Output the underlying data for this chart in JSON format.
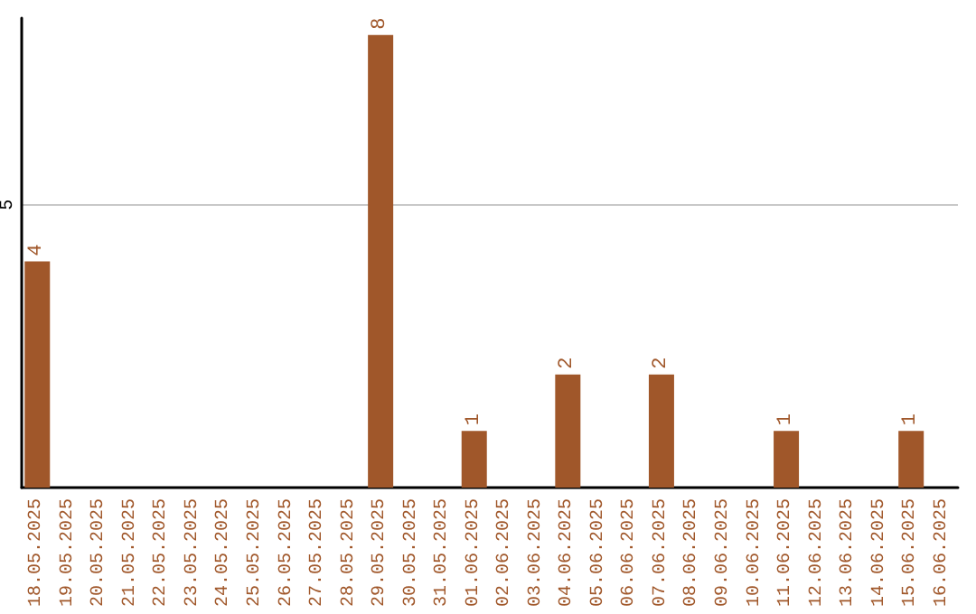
{
  "chart_data": {
    "type": "bar",
    "categories": [
      "18.05.2025",
      "19.05.2025",
      "20.05.2025",
      "21.05.2025",
      "22.05.2025",
      "23.05.2025",
      "24.05.2025",
      "25.05.2025",
      "26.05.2025",
      "27.05.2025",
      "28.05.2025",
      "29.05.2025",
      "30.05.2025",
      "31.05.2025",
      "01.06.2025",
      "02.06.2025",
      "03.06.2025",
      "04.06.2025",
      "05.06.2025",
      "06.06.2025",
      "07.06.2025",
      "08.06.2025",
      "09.06.2025",
      "10.06.2025",
      "11.06.2025",
      "12.06.2025",
      "13.06.2025",
      "14.06.2025",
      "15.06.2025",
      "16.06.2025"
    ],
    "values": [
      4,
      0,
      0,
      0,
      0,
      0,
      0,
      0,
      0,
      0,
      0,
      8,
      0,
      0,
      1,
      0,
      0,
      2,
      0,
      0,
      2,
      0,
      0,
      0,
      1,
      0,
      0,
      0,
      1,
      0
    ],
    "value_labels": [
      "4",
      null,
      null,
      null,
      null,
      null,
      null,
      null,
      null,
      null,
      null,
      "8",
      null,
      null,
      "1",
      null,
      null,
      "2",
      null,
      null,
      "2",
      null,
      null,
      null,
      "1",
      null,
      null,
      null,
      "1",
      null
    ],
    "color": "#a0572a",
    "ylim": [
      0,
      8.3
    ],
    "yticks": [
      5
    ],
    "grid": "y"
  }
}
